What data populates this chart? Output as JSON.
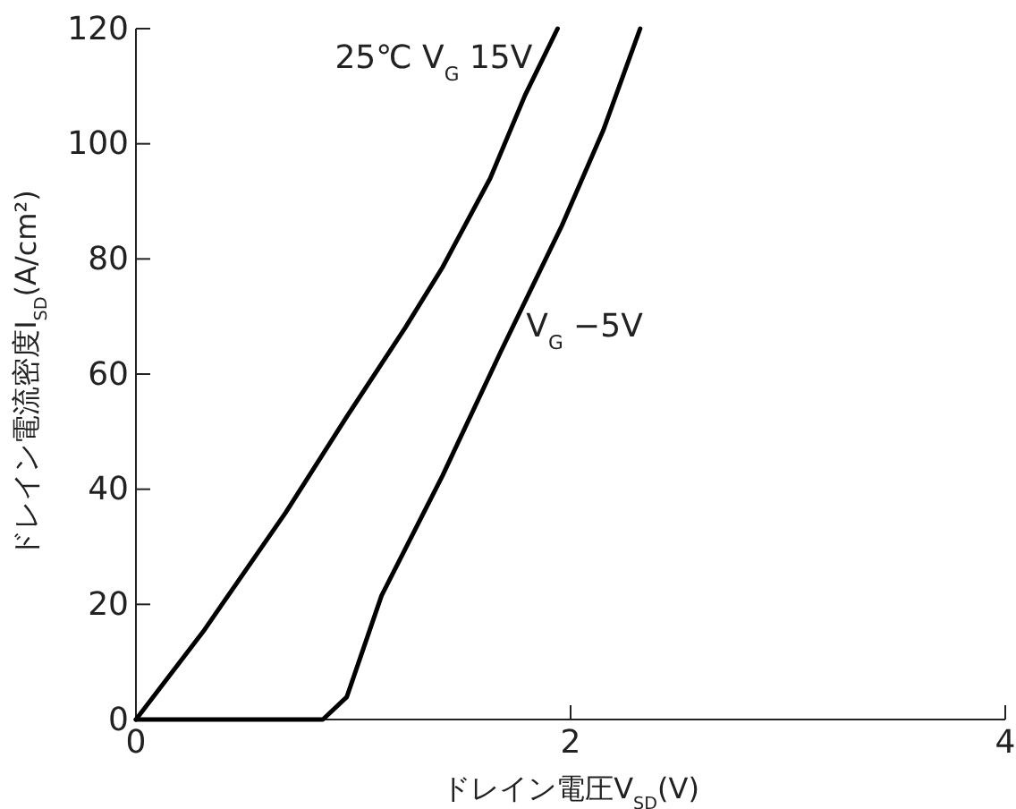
{
  "chart_data": {
    "type": "line",
    "xlabel": "ドレイン電圧V$_{SD}$(V)",
    "ylabel": "ドレイン電流密度I$_{SD}$(A/cm²)",
    "xlim": [
      0,
      4
    ],
    "xticks": [
      0,
      2,
      4
    ],
    "ylim": [
      0,
      120
    ],
    "yticks": [
      0,
      20,
      40,
      60,
      80,
      100,
      120
    ],
    "grid": false,
    "marker": "none",
    "line_style": "solid",
    "series": [
      {
        "name": "25℃  V$_{G}$ 15V",
        "color": "#000000",
        "x": [
          0,
          0.31,
          0.69,
          0.97,
          1.24,
          1.41,
          1.63,
          1.79,
          1.94
        ],
        "values": [
          0,
          15.3,
          36,
          52.6,
          68.1,
          78.5,
          94,
          108.4,
          120
        ]
      },
      {
        "name": "V$_{G}$ −5V",
        "color": "#000000",
        "x": [
          0,
          0.3,
          0.6,
          0.86,
          0.97,
          1.13,
          1.41,
          1.68,
          1.96,
          2.15,
          2.32
        ],
        "values": [
          0,
          0,
          0,
          0,
          3.9,
          21.5,
          42.3,
          64,
          85.8,
          102.3,
          120
        ]
      }
    ]
  }
}
